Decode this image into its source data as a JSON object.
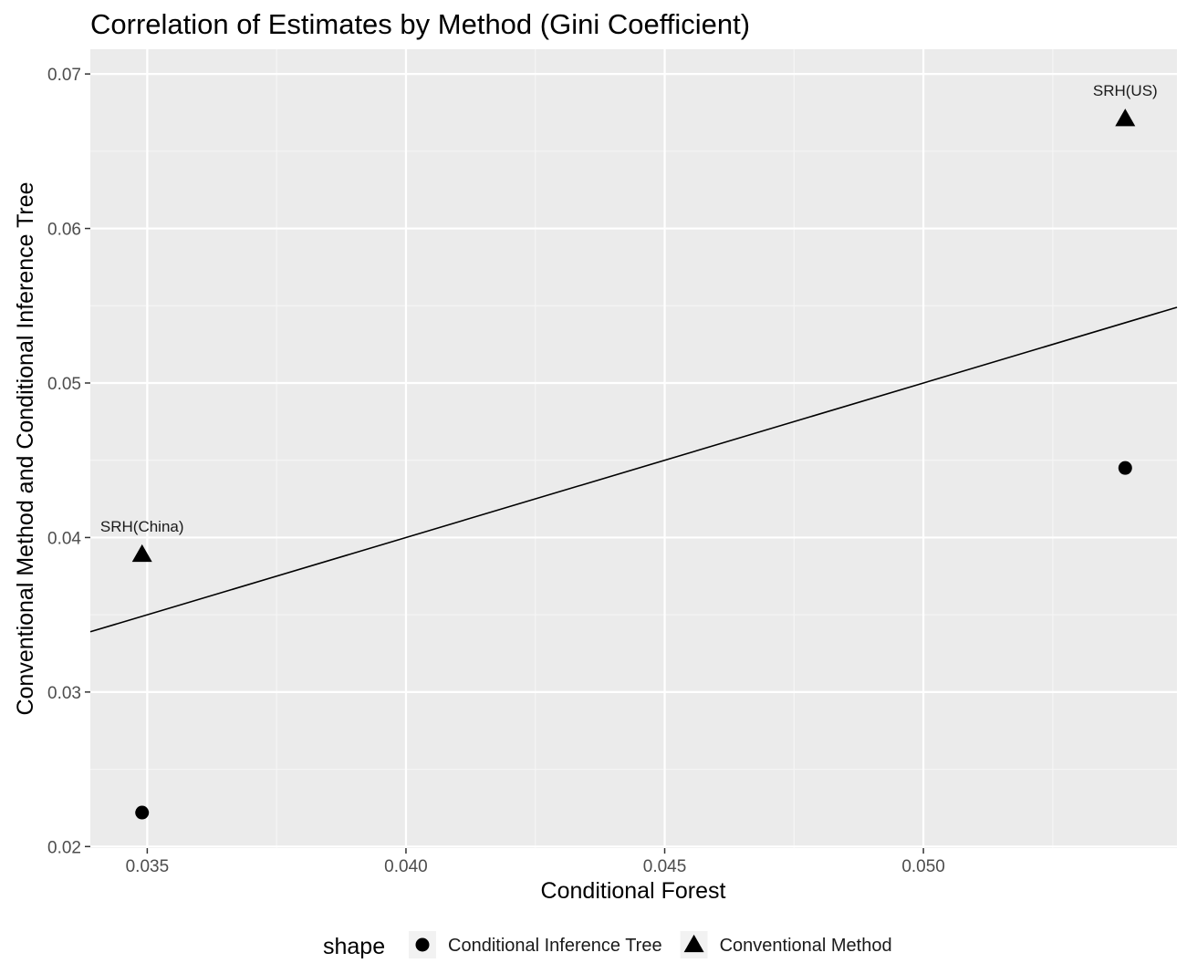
{
  "chart_data": {
    "type": "scatter",
    "title": "Correlation of Estimates by Method (Gini Coefficient)",
    "xlabel": "Conditional Forest",
    "ylabel": "Conventional Method and Conditional Inference Tree",
    "xlim": [
      0.0339,
      0.0549
    ],
    "ylim": [
      0.0199,
      0.0716
    ],
    "x_ticks": [
      0.035,
      0.04,
      0.045,
      0.05
    ],
    "x_tick_labels": [
      "0.035",
      "0.040",
      "0.045",
      "0.050"
    ],
    "y_ticks": [
      0.02,
      0.03,
      0.04,
      0.05,
      0.06,
      0.07
    ],
    "y_tick_labels": [
      "0.02",
      "0.03",
      "0.04",
      "0.05",
      "0.06",
      "0.07"
    ],
    "grid": true,
    "reference_line": {
      "type": "identity",
      "slope": 1,
      "intercept": 0
    },
    "series": [
      {
        "name": "Conditional Inference Tree",
        "marker": "circle",
        "points": [
          {
            "x": 0.0349,
            "y": 0.0222
          },
          {
            "x": 0.0539,
            "y": 0.0445
          }
        ]
      },
      {
        "name": "Conventional Method",
        "marker": "triangle",
        "points": [
          {
            "x": 0.0349,
            "y": 0.0389,
            "label": "SRH(China)"
          },
          {
            "x": 0.0539,
            "y": 0.0671,
            "label": "SRH(US)"
          }
        ]
      }
    ],
    "legend": {
      "title": "shape",
      "position": "bottom"
    }
  },
  "colors": {
    "panel_background": "#ebebeb",
    "grid_major": "#ffffff",
    "grid_minor": "#f5f5f5",
    "marks": "#000000"
  }
}
